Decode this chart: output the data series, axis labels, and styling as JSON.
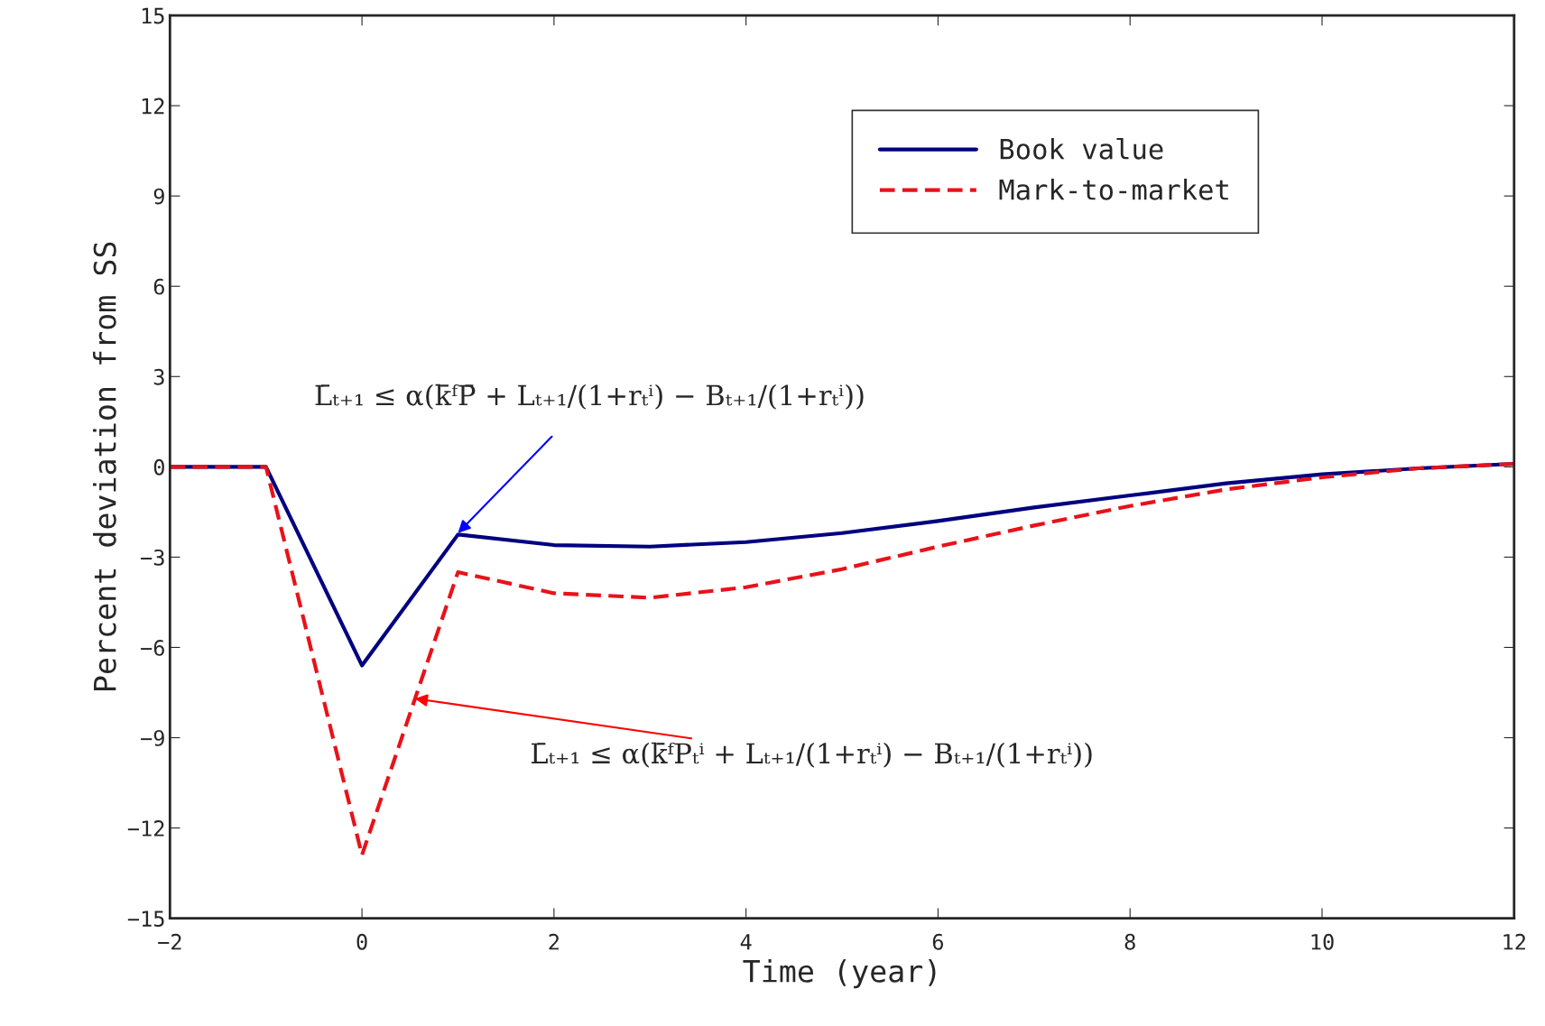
{
  "chart_data": {
    "type": "line",
    "xlabel": "Time (year)",
    "ylabel": "Percent deviation from SS",
    "x": [
      -2,
      -1,
      0,
      1,
      2,
      3,
      4,
      5,
      6,
      7,
      8,
      9,
      10,
      11,
      12
    ],
    "series": [
      {
        "name": "Book value",
        "color": "#000080",
        "line_style": "solid",
        "values": [
          0,
          0,
          -6.6,
          -2.25,
          -2.6,
          -2.65,
          -2.5,
          -2.2,
          -1.8,
          -1.35,
          -0.95,
          -0.55,
          -0.25,
          -0.05,
          0.1
        ]
      },
      {
        "name": "Mark-to-market",
        "color": "#e8121a",
        "line_style": "dashed",
        "values": [
          0,
          0,
          -12.9,
          -3.5,
          -4.2,
          -4.35,
          -4.0,
          -3.4,
          -2.65,
          -1.95,
          -1.3,
          -0.75,
          -0.35,
          -0.05,
          0.1
        ]
      }
    ],
    "annotations": [
      {
        "text": "L̄ₜ₊₁ ≤ α(k̄ᶠP̄ + Lₜ₊₁/(1+rₜⁱ) − Bₜ₊₁/(1+rₜⁱ))",
        "x": 1,
        "y": -2.2
      },
      {
        "text": "L̄ₜ₊₁ ≤ α(k̄ᶠPₜⁱ + Lₜ₊₁/(1+rₜⁱ) − Bₜ₊₁/(1+rₜⁱ))",
        "x": 0.55,
        "y": -7.7
      }
    ],
    "xlim": [
      -2,
      12
    ],
    "ylim": [
      -15,
      15
    ],
    "xticks": [
      {
        "value": -2,
        "label": "−2"
      },
      0,
      2,
      4,
      6,
      8,
      10,
      12
    ],
    "yticks": [
      {
        "value": -15,
        "label": "−15"
      },
      {
        "value": -12,
        "label": "−12"
      },
      {
        "value": -9,
        "label": "−9"
      },
      {
        "value": -6,
        "label": "−6"
      },
      {
        "value": -3,
        "label": "−3"
      },
      0,
      3,
      6,
      9,
      12,
      15
    ],
    "grid": false,
    "legend": "top right",
    "marker": "none"
  }
}
